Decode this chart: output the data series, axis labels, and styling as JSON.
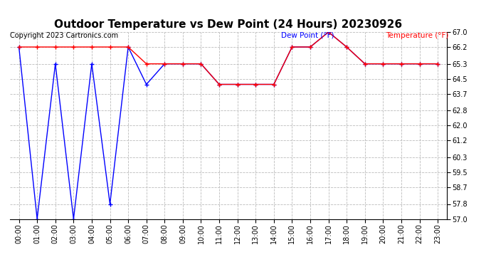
{
  "title": "Outdoor Temperature vs Dew Point (24 Hours) 20230926",
  "copyright": "Copyright 2023 Cartronics.com",
  "legend_dew": "Dew Point (°F)",
  "legend_temp": "Temperature (°F)",
  "hours": [
    0,
    1,
    2,
    3,
    4,
    5,
    6,
    7,
    8,
    9,
    10,
    11,
    12,
    13,
    14,
    15,
    16,
    17,
    18,
    19,
    20,
    21,
    22,
    23
  ],
  "hour_labels": [
    "00:00",
    "01:00",
    "02:00",
    "03:00",
    "04:00",
    "05:00",
    "06:00",
    "07:00",
    "08:00",
    "09:00",
    "10:00",
    "11:00",
    "12:00",
    "13:00",
    "14:00",
    "15:00",
    "16:00",
    "17:00",
    "18:00",
    "19:00",
    "20:00",
    "21:00",
    "22:00",
    "23:00"
  ],
  "temperature": [
    66.2,
    66.2,
    66.2,
    66.2,
    66.2,
    66.2,
    66.2,
    65.3,
    65.3,
    65.3,
    65.3,
    64.2,
    64.2,
    64.2,
    64.2,
    66.2,
    66.2,
    67.0,
    66.2,
    65.3,
    65.3,
    65.3,
    65.3,
    65.3
  ],
  "dew_point": [
    66.2,
    57.0,
    65.3,
    57.0,
    65.3,
    57.8,
    66.2,
    64.2,
    65.3,
    65.3,
    65.3,
    64.2,
    64.2,
    64.2,
    64.2,
    66.2,
    66.2,
    67.0,
    66.2,
    65.3,
    65.3,
    65.3,
    65.3,
    65.3
  ],
  "ylim": [
    57.0,
    67.0
  ],
  "yticks": [
    57.0,
    57.8,
    58.7,
    59.5,
    60.3,
    61.2,
    62.0,
    62.8,
    63.7,
    64.5,
    65.3,
    66.2,
    67.0
  ],
  "temp_color": "red",
  "dew_color": "blue",
  "bg_color": "white",
  "grid_color": "#bbbbbb",
  "title_fontsize": 11,
  "label_fontsize": 7.5,
  "tick_fontsize": 7,
  "copyright_fontsize": 7
}
